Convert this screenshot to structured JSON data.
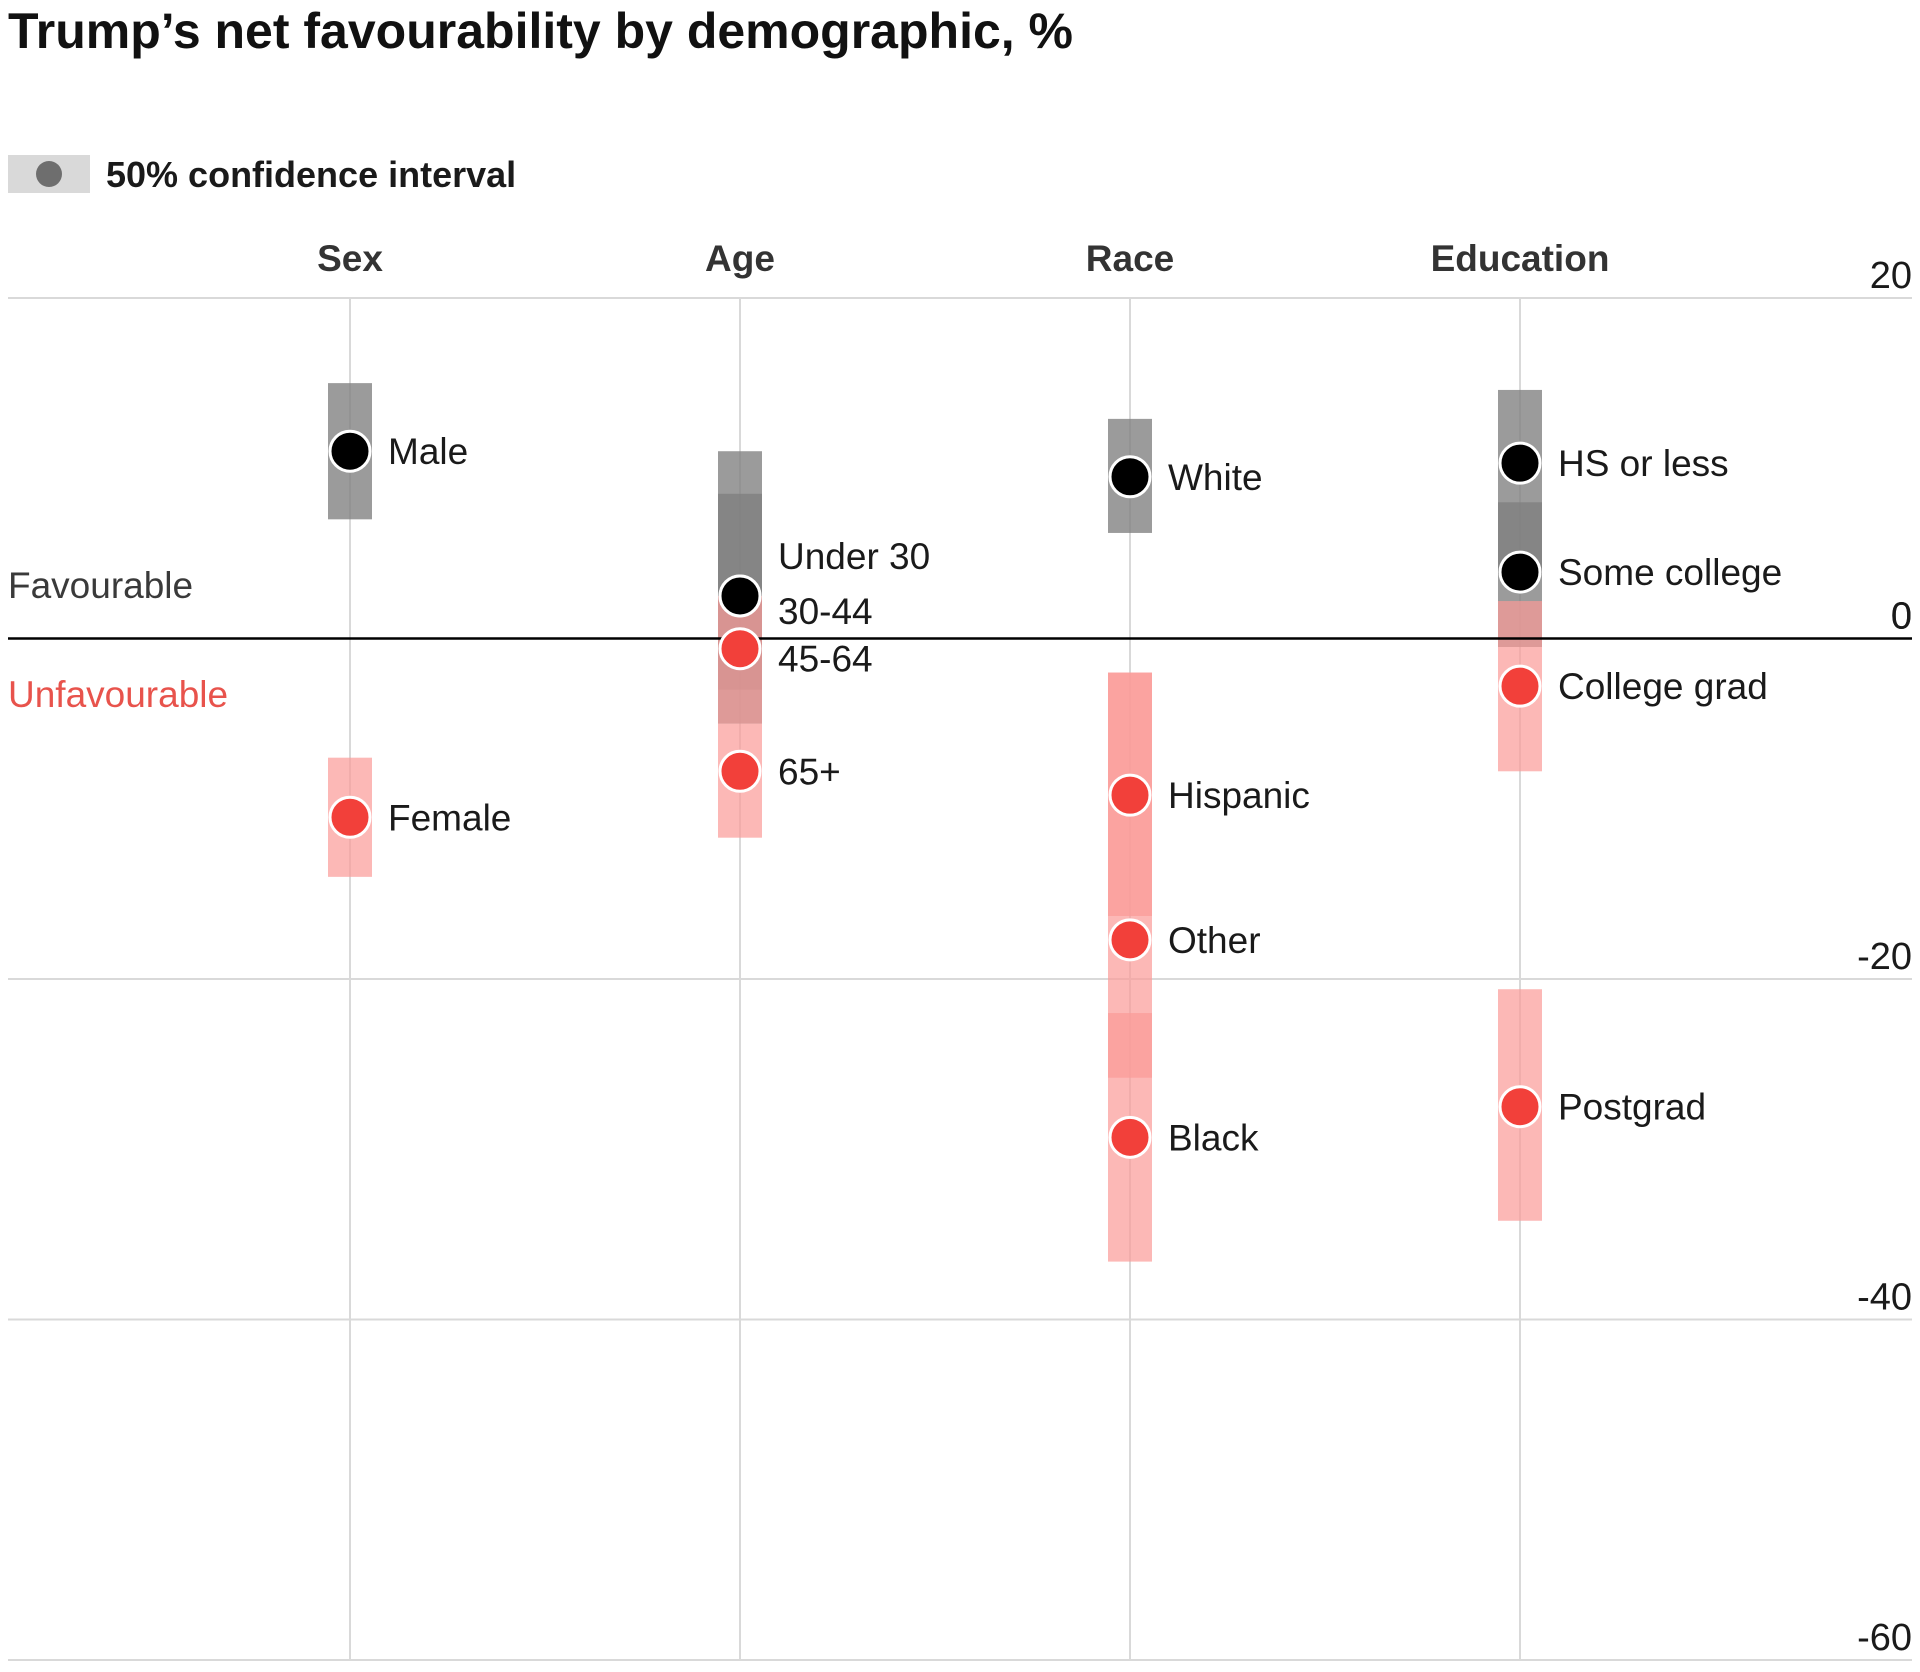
{
  "chart_data": {
    "type": "scatter",
    "title": "Trump’s net favourability by demographic, %",
    "legend": {
      "label": "50% confidence interval",
      "placement": "top-left"
    },
    "favourable_label": "Favourable",
    "unfavourable_label": "Unfavourable",
    "ylim": [
      -60,
      20
    ],
    "yticks": [
      20,
      0,
      -20,
      -40,
      -60
    ],
    "groups": [
      {
        "name": "Sex",
        "points": [
          {
            "label": "Male",
            "value": 11,
            "ci": [
              7,
              15
            ]
          },
          {
            "label": "Female",
            "value": -10.5,
            "ci": [
              -14,
              -7
            ]
          }
        ]
      },
      {
        "name": "Age",
        "points": [
          {
            "label": "Under 30",
            "value": 2.5,
            "ci": [
              -5,
              11
            ]
          },
          {
            "label": "30-44",
            "value": 2.5,
            "ci": [
              -3,
              8.5
            ]
          },
          {
            "label": "45-64",
            "value": -0.6,
            "ci": [
              -5,
              2.5
            ]
          },
          {
            "label": "65+",
            "value": -7.8,
            "ci": [
              -11.7,
              -5
            ]
          }
        ]
      },
      {
        "name": "Race",
        "points": [
          {
            "label": "White",
            "value": 9.5,
            "ci": [
              6.2,
              12.9
            ]
          },
          {
            "label": "Hispanic",
            "value": -9.2,
            "ci": [
              -16.3,
              -2
            ]
          },
          {
            "label": "Other",
            "value": -17.7,
            "ci": [
              -25.8,
              -2
            ]
          },
          {
            "label": "Black",
            "value": -29.3,
            "ci": [
              -36.6,
              -22
            ]
          }
        ]
      },
      {
        "name": "Education",
        "points": [
          {
            "label": "HS or less",
            "value": 10.3,
            "ci": [
              3.8,
              14.6
            ]
          },
          {
            "label": "Some college",
            "value": 3.9,
            "ci": [
              -0.5,
              8
            ]
          },
          {
            "label": "College grad",
            "value": -2.8,
            "ci": [
              -7.8,
              2.2
            ]
          },
          {
            "label": "Postgrad",
            "value": -27.5,
            "ci": [
              -34.2,
              -20.6
            ]
          }
        ]
      }
    ],
    "colors": {
      "favourable_dot": "#000000",
      "unfavourable_dot": "#f2403a",
      "favourable_band": "#7f7f7f",
      "unfavourable_band": "#fb9a97",
      "unfavourable_text": "#e8534c",
      "favourable_text": "#3a3a3a",
      "gridline": "#d9d9d9",
      "zero_line": "#000000"
    }
  }
}
